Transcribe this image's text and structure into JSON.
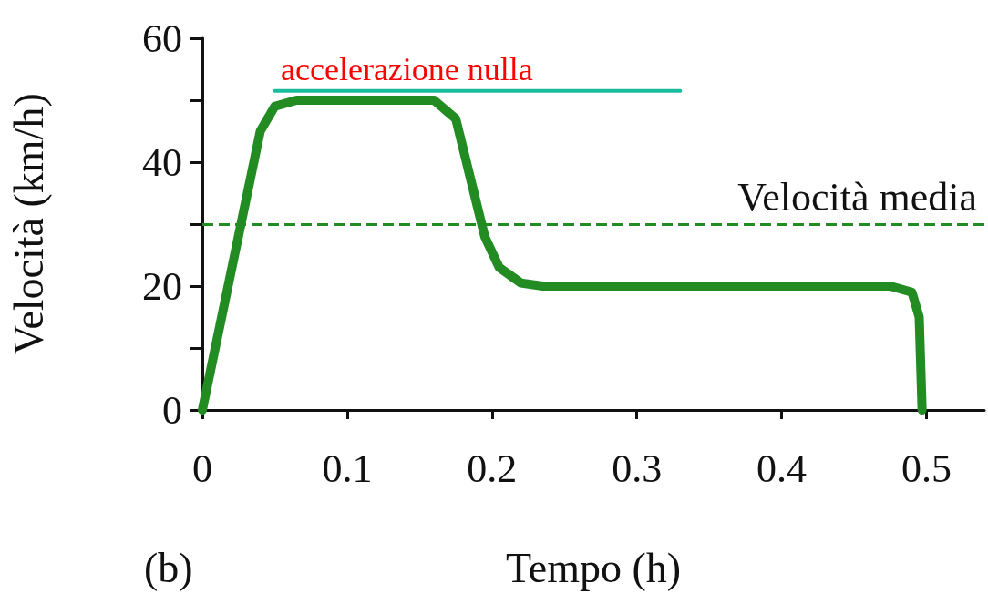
{
  "chart_data": {
    "type": "line",
    "xlabel": "Tempo (h)",
    "ylabel": "Velocità (km/h)",
    "xlim": [
      0,
      0.54
    ],
    "xticks": [
      0,
      0.1,
      0.2,
      0.3,
      0.4,
      0.5
    ],
    "ylim": [
      0,
      60
    ],
    "yticks": [
      0,
      {
        "value": 10,
        "label": null
      },
      20,
      {
        "value": 30,
        "label": null
      },
      40,
      {
        "value": 50,
        "label": null
      },
      60
    ],
    "series": [
      {
        "color": "#228b22",
        "x": [
          0,
          0.04,
          0.05,
          0.065,
          0.16,
          0.175,
          0.195,
          0.205,
          0.22,
          0.235,
          0.475,
          0.49,
          0.495,
          0.497
        ],
        "values": [
          0,
          45,
          49,
          50,
          50,
          47,
          28,
          23,
          20.5,
          20,
          20,
          19,
          15,
          0
        ]
      },
      {
        "color": "#1abc9c",
        "x": [
          0.05,
          0.33
        ],
        "values": [
          51.5,
          51.5
        ]
      }
    ],
    "ref_lines": [
      {
        "axis": "y",
        "value": 30,
        "label": "Velocità media",
        "color": "#228b22",
        "line_style": "dashed"
      }
    ],
    "annotations": [
      "accelerazione nulla",
      "(b)"
    ],
    "grid": false,
    "marker": "none",
    "line_style": "solid"
  }
}
